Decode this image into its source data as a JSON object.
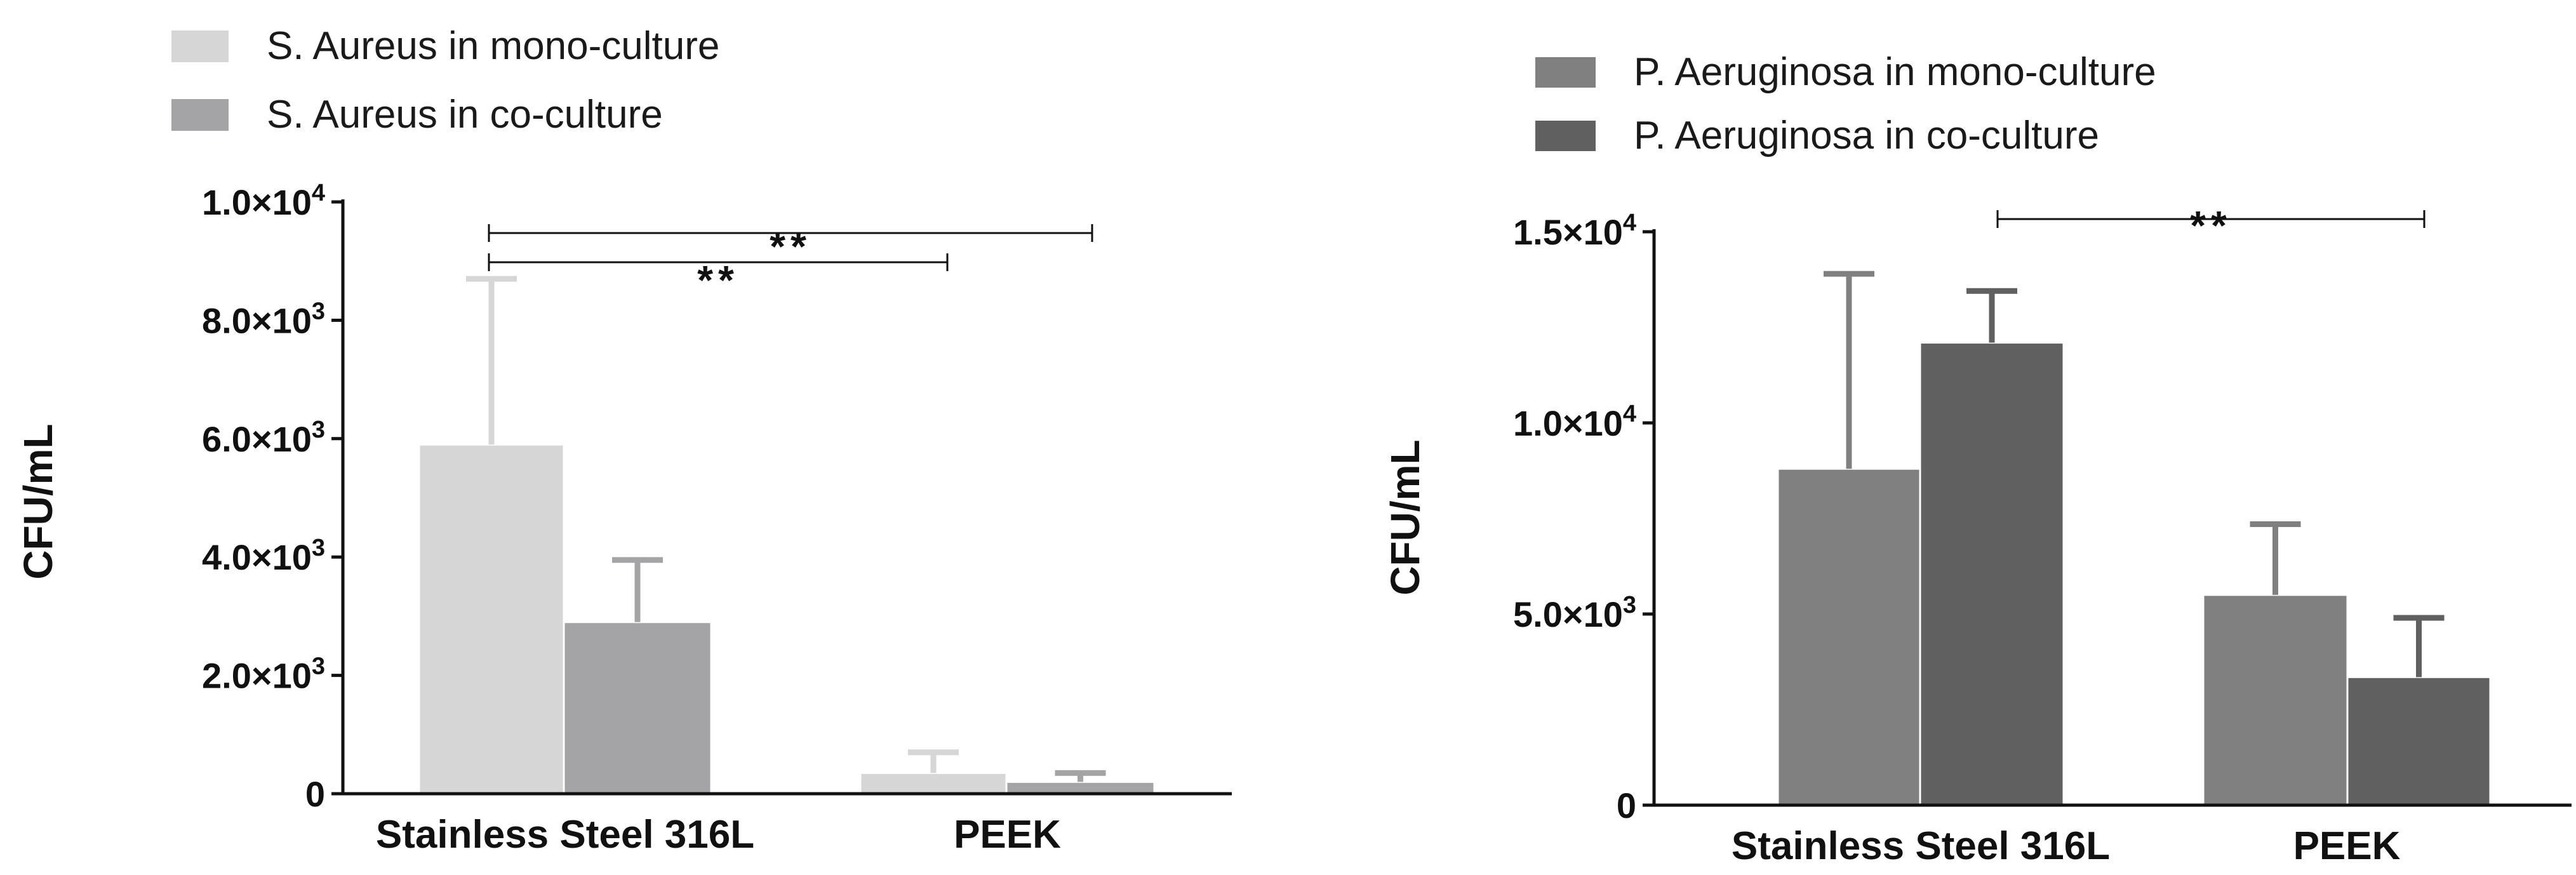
{
  "chart_data": [
    {
      "type": "bar",
      "categories": [
        "Stainless Steel 316L",
        "PEEK"
      ],
      "ylabel": "CFU/mL",
      "ylim": [
        0,
        10000
      ],
      "yticks": [
        {
          "value": 0,
          "mantissa": "0",
          "exponent": ""
        },
        {
          "value": 2000,
          "mantissa": "2.0×10",
          "exponent": "3"
        },
        {
          "value": 4000,
          "mantissa": "4.0×10",
          "exponent": "3"
        },
        {
          "value": 6000,
          "mantissa": "6.0×10",
          "exponent": "3"
        },
        {
          "value": 8000,
          "mantissa": "8.0×10",
          "exponent": "3"
        },
        {
          "value": 10000,
          "mantissa": "1.0×10",
          "exponent": "4"
        }
      ],
      "legend_position": "top-left",
      "grid": false,
      "series": [
        {
          "name": "S. Aureus in mono-culture",
          "color": "#d6d6d6",
          "values": [
            5900,
            350
          ],
          "errors": [
            2800,
            350
          ]
        },
        {
          "name": "S. Aureus in co-culture",
          "color": "#a4a4a7",
          "values": [
            2900,
            200
          ],
          "errors": [
            1050,
            150
          ]
        }
      ],
      "significance": [
        {
          "from_category": 0,
          "to_category": 1,
          "label": "**",
          "level": 9500
        },
        {
          "from_category": 0,
          "to_category": 1,
          "label": "**",
          "level": 9000
        }
      ]
    },
    {
      "type": "bar",
      "categories": [
        "Stainless Steel 316L",
        "PEEK"
      ],
      "ylabel": "CFU/mL",
      "ylim": [
        0,
        15000
      ],
      "yticks": [
        {
          "value": 0,
          "mantissa": "0",
          "exponent": ""
        },
        {
          "value": 5000,
          "mantissa": "5.0×10",
          "exponent": "3"
        },
        {
          "value": 10000,
          "mantissa": "1.0×10",
          "exponent": "4"
        },
        {
          "value": 15000,
          "mantissa": "1.5×10",
          "exponent": "4"
        }
      ],
      "legend_position": "top-left",
      "grid": false,
      "series": [
        {
          "name": "P. Aeruginosa in mono-culture",
          "color": "#808080",
          "values": [
            8800,
            5500
          ],
          "errors": [
            5100,
            1850
          ]
        },
        {
          "name": "P. Aeruginosa in co-culture",
          "color": "#606060",
          "values": [
            12100,
            3350
          ],
          "errors": [
            1350,
            1550
          ]
        }
      ],
      "significance": [
        {
          "from_category": 0,
          "to_category": 1,
          "label": "**",
          "level": 15400
        }
      ]
    }
  ]
}
